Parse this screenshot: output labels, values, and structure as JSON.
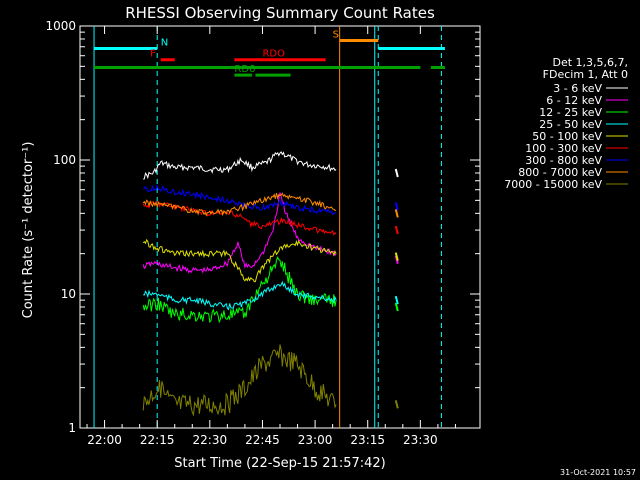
{
  "chart_data": {
    "type": "line",
    "title": "RHESSI Observing Summary Count Rates",
    "xlabel": "Start Time (22-Sep-15 21:57:42)",
    "ylabel": "Count Rate (s⁻¹ detector⁻¹)",
    "yscale": "log",
    "ylim": [
      1,
      1000
    ],
    "xlim": [
      -7,
      107
    ],
    "x_unit": "minutes after 22:00 UT",
    "x_ticks": [
      {
        "x": 0,
        "label": "22:00"
      },
      {
        "x": 15,
        "label": "22:15"
      },
      {
        "x": 30,
        "label": "22:30"
      },
      {
        "x": 45,
        "label": "22:45"
      },
      {
        "x": 60,
        "label": "23:00"
      },
      {
        "x": 75,
        "label": "23:15"
      },
      {
        "x": 90,
        "label": "23:30"
      }
    ],
    "y_ticks": [
      {
        "y": 1,
        "label": "1"
      },
      {
        "y": 10,
        "label": "10"
      },
      {
        "y": 100,
        "label": "100"
      },
      {
        "y": 1000,
        "label": "1000"
      }
    ],
    "legend_header": [
      "Det 1,3,5,6,7,",
      "FDecim 1, Att 0"
    ],
    "legend_position": "right",
    "footer_date": "31-Oct-2021 10:57",
    "vertical_markers": [
      {
        "x": -3,
        "color": "#00ffff",
        "style": "solid"
      },
      {
        "x": 15,
        "color": "#00ffff",
        "style": "dashed"
      },
      {
        "x": 67,
        "color": "#ff8c00",
        "style": "solid"
      },
      {
        "x": 77,
        "color": "#00ffff",
        "style": "solid"
      },
      {
        "x": 78,
        "color": "#00ffff",
        "style": "dashed"
      },
      {
        "x": 96,
        "color": "#00ffff",
        "style": "dashed"
      }
    ],
    "flag_bars": [
      {
        "label": "N",
        "color": "#00ffff",
        "y": 680,
        "segments": [
          [
            -3,
            15
          ],
          [
            78,
            97
          ]
        ],
        "label_x": 16
      },
      {
        "label": "S",
        "color": "#ff8c00",
        "y": 780,
        "segments": [
          [
            67,
            78
          ]
        ],
        "label_x": 65
      },
      {
        "label": "F",
        "color": "#ff0000",
        "y": 560,
        "segments": [
          [
            16,
            20
          ]
        ],
        "label_x": 13
      },
      {
        "label": "RDO",
        "color": "#ff0000",
        "y": 560,
        "segments": [
          [
            37,
            63
          ]
        ],
        "label_x": 45
      },
      {
        "label": "",
        "color": "#00a000",
        "y": 490,
        "segments": [
          [
            -3,
            90
          ],
          [
            93,
            97
          ]
        ],
        "label_x": 0
      },
      {
        "label": "RD6",
        "color": "#00a000",
        "y": 430,
        "segments": [
          [
            37,
            42
          ],
          [
            43,
            53
          ]
        ],
        "label_x": 37
      }
    ],
    "series": [
      {
        "name": "3 - 6 keV",
        "color": "#000000",
        "values": [
          [
            11,
            75
          ],
          [
            14,
            80
          ],
          [
            16,
            95
          ],
          [
            20,
            88
          ],
          [
            25,
            88
          ],
          [
            30,
            85
          ],
          [
            35,
            85
          ],
          [
            39,
            100
          ],
          [
            42,
            88
          ],
          [
            46,
            95
          ],
          [
            50,
            115
          ],
          [
            54,
            100
          ],
          [
            58,
            92
          ],
          [
            62,
            90
          ],
          [
            66,
            85
          ],
          [
            83,
            80
          ]
        ]
      },
      {
        "name": "6 - 12 keV",
        "color": "#ff00ff",
        "values": [
          [
            11,
            16
          ],
          [
            14,
            17
          ],
          [
            18,
            16
          ],
          [
            25,
            15
          ],
          [
            30,
            15
          ],
          [
            35,
            17
          ],
          [
            38,
            24
          ],
          [
            40,
            16
          ],
          [
            42,
            16
          ],
          [
            45,
            20
          ],
          [
            48,
            30
          ],
          [
            50,
            55
          ],
          [
            52,
            38
          ],
          [
            55,
            26
          ],
          [
            60,
            22
          ],
          [
            66,
            20
          ],
          [
            83,
            18
          ]
        ]
      },
      {
        "name": "12 - 25 keV",
        "color": "#00ff00",
        "values": [
          [
            11,
            8
          ],
          [
            15,
            8.5
          ],
          [
            20,
            7
          ],
          [
            25,
            7
          ],
          [
            30,
            6.8
          ],
          [
            35,
            7
          ],
          [
            40,
            7
          ],
          [
            42,
            9
          ],
          [
            45,
            12
          ],
          [
            50,
            18
          ],
          [
            52,
            14
          ],
          [
            55,
            10
          ],
          [
            60,
            9
          ],
          [
            66,
            9
          ],
          [
            83,
            8
          ]
        ]
      },
      {
        "name": "25 - 50 keV",
        "color": "#00ffff",
        "values": [
          [
            11,
            10
          ],
          [
            15,
            10
          ],
          [
            20,
            9
          ],
          [
            25,
            9
          ],
          [
            30,
            8.5
          ],
          [
            35,
            8
          ],
          [
            40,
            8.5
          ],
          [
            45,
            10
          ],
          [
            50,
            12
          ],
          [
            55,
            10
          ],
          [
            60,
            9.5
          ],
          [
            66,
            9
          ],
          [
            83,
            9
          ]
        ]
      },
      {
        "name": "50 - 100 keV",
        "color": "#e0e000",
        "values": [
          [
            11,
            25
          ],
          [
            15,
            22
          ],
          [
            20,
            20
          ],
          [
            25,
            20
          ],
          [
            30,
            20
          ],
          [
            35,
            20
          ],
          [
            40,
            13
          ],
          [
            43,
            13
          ],
          [
            46,
            17
          ],
          [
            50,
            22
          ],
          [
            55,
            24
          ],
          [
            60,
            22
          ],
          [
            66,
            20
          ],
          [
            83,
            19
          ]
        ]
      },
      {
        "name": "100 - 300 keV",
        "color": "#ff0000",
        "values": [
          [
            11,
            45
          ],
          [
            15,
            48
          ],
          [
            20,
            45
          ],
          [
            25,
            42
          ],
          [
            30,
            40
          ],
          [
            35,
            40
          ],
          [
            39,
            38
          ],
          [
            42,
            33
          ],
          [
            45,
            32
          ],
          [
            50,
            35
          ],
          [
            55,
            33
          ],
          [
            60,
            30
          ],
          [
            66,
            28
          ],
          [
            83,
            30
          ]
        ]
      },
      {
        "name": "300 - 800 keV",
        "color": "#0000ff",
        "values": [
          [
            11,
            60
          ],
          [
            15,
            62
          ],
          [
            20,
            58
          ],
          [
            25,
            56
          ],
          [
            30,
            52
          ],
          [
            35,
            50
          ],
          [
            40,
            45
          ],
          [
            45,
            44
          ],
          [
            50,
            48
          ],
          [
            55,
            44
          ],
          [
            60,
            42
          ],
          [
            66,
            40
          ],
          [
            83,
            45
          ]
        ]
      },
      {
        "name": "800 - 7000 keV",
        "color": "#ff8c00",
        "values": [
          [
            11,
            48
          ],
          [
            15,
            47
          ],
          [
            20,
            44
          ],
          [
            25,
            42
          ],
          [
            30,
            40
          ],
          [
            35,
            41
          ],
          [
            40,
            45
          ],
          [
            45,
            50
          ],
          [
            50,
            55
          ],
          [
            55,
            52
          ],
          [
            60,
            48
          ],
          [
            66,
            42
          ],
          [
            83,
            40
          ]
        ]
      },
      {
        "name": "7000 - 15000 keV",
        "color": "#808000",
        "values": [
          [
            11,
            1.5
          ],
          [
            15,
            2
          ],
          [
            20,
            1.5
          ],
          [
            25,
            1.5
          ],
          [
            30,
            1.5
          ],
          [
            35,
            1.5
          ],
          [
            40,
            2
          ],
          [
            45,
            3
          ],
          [
            50,
            3.5
          ],
          [
            55,
            3
          ],
          [
            60,
            2
          ],
          [
            66,
            1.5
          ],
          [
            83,
            1.5
          ]
        ]
      }
    ]
  }
}
